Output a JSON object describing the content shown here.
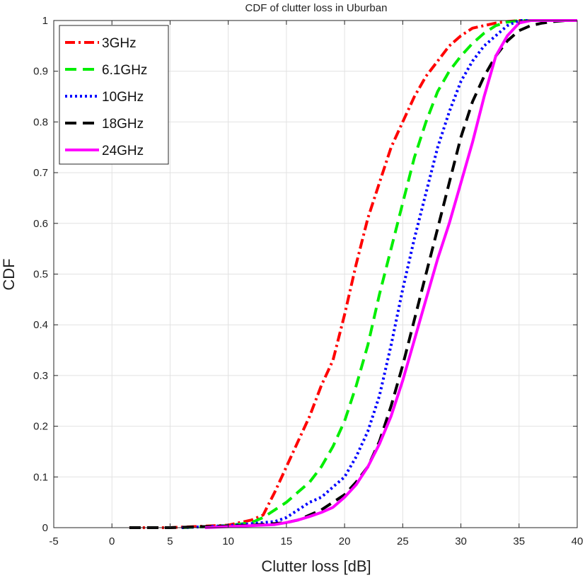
{
  "chart_data": {
    "type": "line",
    "title": "CDF of clutter loss in Uburban",
    "xlabel": "Clutter loss [dB]",
    "ylabel": "CDF",
    "xlim": [
      -5,
      40
    ],
    "ylim": [
      0,
      1
    ],
    "xticks": [
      -5,
      0,
      5,
      10,
      15,
      20,
      25,
      30,
      35,
      40
    ],
    "yticks": [
      0,
      0.1,
      0.2,
      0.3,
      0.4,
      0.5,
      0.6,
      0.7,
      0.8,
      0.9,
      1
    ],
    "grid": true,
    "legend_position": "top-left",
    "series": [
      {
        "name": "3GHz",
        "color": "#ff0000",
        "style": "dashdot",
        "x": [
          1.5,
          5,
          8,
          10,
          11,
          12,
          13,
          14,
          15,
          16,
          17,
          18,
          19,
          20,
          21,
          22,
          23,
          24,
          25,
          26,
          27,
          28,
          29,
          30,
          31,
          32,
          33,
          34,
          35,
          36,
          38
        ],
        "y": [
          0,
          0,
          0.003,
          0.005,
          0.01,
          0.015,
          0.025,
          0.07,
          0.12,
          0.17,
          0.22,
          0.28,
          0.33,
          0.42,
          0.52,
          0.61,
          0.68,
          0.75,
          0.8,
          0.85,
          0.89,
          0.92,
          0.95,
          0.97,
          0.985,
          0.99,
          0.995,
          0.998,
          1,
          1,
          1
        ]
      },
      {
        "name": "6.1GHz",
        "color": "#00ee00",
        "style": "dashed",
        "x": [
          6,
          8,
          10,
          12,
          13,
          14,
          15,
          16,
          17,
          18,
          19,
          20,
          21,
          22,
          23,
          24,
          25,
          26,
          27,
          28,
          29,
          30,
          31,
          32,
          33,
          34,
          35,
          36,
          37
        ],
        "y": [
          0,
          0.002,
          0.004,
          0.01,
          0.02,
          0.035,
          0.05,
          0.07,
          0.09,
          0.12,
          0.16,
          0.21,
          0.28,
          0.36,
          0.46,
          0.55,
          0.64,
          0.73,
          0.8,
          0.86,
          0.9,
          0.93,
          0.955,
          0.975,
          0.99,
          0.997,
          1,
          1,
          1
        ]
      },
      {
        "name": "10GHz",
        "color": "#0000ff",
        "style": "dotted",
        "x": [
          6,
          8,
          10,
          12,
          13,
          14,
          15,
          16,
          17,
          18,
          19,
          20,
          21,
          22,
          23,
          24,
          25,
          26,
          27,
          28,
          29,
          30,
          31,
          32,
          33,
          34,
          35,
          36
        ],
        "y": [
          0,
          0.002,
          0.004,
          0.008,
          0.01,
          0.012,
          0.02,
          0.035,
          0.05,
          0.06,
          0.08,
          0.1,
          0.14,
          0.19,
          0.26,
          0.36,
          0.47,
          0.57,
          0.66,
          0.75,
          0.82,
          0.88,
          0.92,
          0.95,
          0.97,
          0.99,
          1,
          1
        ]
      },
      {
        "name": "18GHz",
        "color": "#000000",
        "style": "dashed",
        "x": [
          1.5,
          5,
          8,
          10,
          12,
          14,
          15,
          16,
          17,
          18,
          19,
          20,
          21,
          22,
          23,
          24,
          25,
          26,
          27,
          28,
          29,
          30,
          31,
          32,
          33,
          34,
          35,
          36,
          37,
          38,
          39,
          40
        ],
        "y": [
          0,
          0,
          0.002,
          0.003,
          0.005,
          0.008,
          0.01,
          0.015,
          0.025,
          0.035,
          0.05,
          0.065,
          0.09,
          0.12,
          0.17,
          0.24,
          0.32,
          0.41,
          0.5,
          0.59,
          0.68,
          0.77,
          0.84,
          0.89,
          0.93,
          0.96,
          0.98,
          0.99,
          0.995,
          0.998,
          1,
          1
        ]
      },
      {
        "name": "24GHz",
        "color": "#ff00ff",
        "style": "solid",
        "x": [
          8,
          10,
          12,
          14,
          15,
          16,
          17,
          18,
          19,
          20,
          21,
          22,
          23,
          24,
          25,
          26,
          27,
          28,
          29,
          30,
          31,
          32,
          33,
          34,
          35,
          36,
          37,
          38,
          40
        ],
        "y": [
          0,
          0.002,
          0.004,
          0.006,
          0.01,
          0.015,
          0.022,
          0.03,
          0.04,
          0.06,
          0.085,
          0.12,
          0.165,
          0.22,
          0.29,
          0.37,
          0.45,
          0.53,
          0.6,
          0.68,
          0.76,
          0.85,
          0.93,
          0.97,
          0.995,
          1,
          1,
          1,
          1
        ]
      }
    ]
  }
}
